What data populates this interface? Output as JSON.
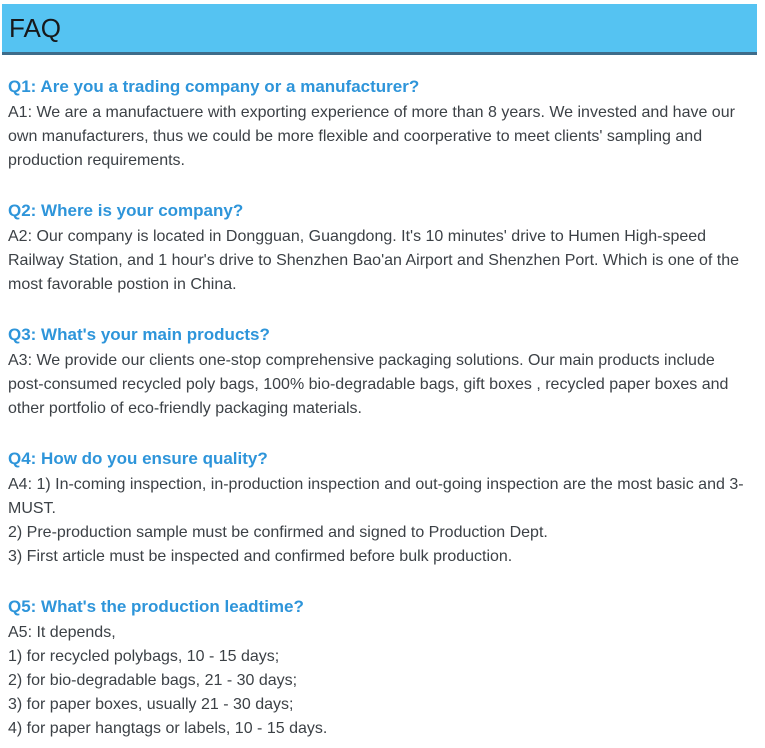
{
  "header": {
    "title": "FAQ"
  },
  "theme": {
    "header_background": "#55c3f2",
    "header_border_bottom": "#3e6c8a",
    "header_title_color": "#17191b",
    "question_color": "#2e95da",
    "answer_color": "#3c4146",
    "page_background": "#ffffff"
  },
  "faq": {
    "items": [
      {
        "question": "Q1: Are you a trading company or a manufacturer?",
        "answer_lines": [
          "A1: We are a manufactuere with exporting experience of more than 8 years. We invested and have our own manufacturers, thus we could be more flexible and coorperative to meet clients' sampling and production requirements."
        ]
      },
      {
        "question": "Q2: Where is your company?",
        "answer_lines": [
          "A2: Our company is located in Dongguan, Guangdong. It's 10 minutes' drive to Humen High-speed Railway Station, and 1 hour's drive to Shenzhen Bao'an Airport and Shenzhen Port. Which is one of the most favorable postion in China."
        ]
      },
      {
        "question": "Q3: What's your main products?",
        "answer_lines": [
          "A3: We provide our clients one-stop comprehensive packaging solutions. Our main products include post-consumed recycled poly bags, 100% bio-degradable bags, gift boxes , recycled paper boxes and other portfolio of eco-friendly packaging materials."
        ]
      },
      {
        "question": "Q4: How do you ensure quality?",
        "answer_lines": [
          "A4: 1) In-coming inspection, in-production inspection and out-going inspection are the most basic and 3-MUST.",
          "2) Pre-production sample must be confirmed and signed to Production Dept.",
          "3) First article must be inspected and confirmed before bulk production."
        ]
      },
      {
        "question": "Q5: What's the production leadtime?",
        "answer_lines": [
          "A5: It depends,",
          "1) for recycled polybags, 10 - 15 days;",
          "2) for bio-degradable bags, 21 - 30 days;",
          "3) for paper boxes, usually 21 - 30 days;",
          "4) for paper hangtags or labels, 10 - 15 days."
        ]
      }
    ]
  }
}
